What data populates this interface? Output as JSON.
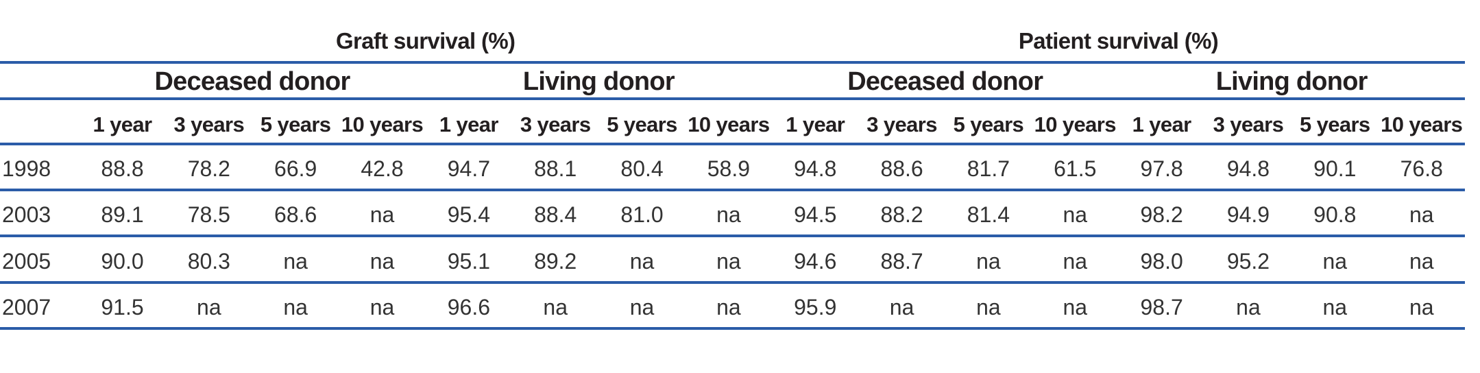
{
  "colors": {
    "rule": "#2b5ca8",
    "header_text": "#231f20",
    "data_text": "#333333"
  },
  "table": {
    "group_headers": {
      "graft": "Graft survival (%)",
      "patient": "Patient survival (%)"
    },
    "subgroup_headers": [
      "Deceased donor",
      "Living donor",
      "Deceased donor",
      "Living donor"
    ],
    "column_headers": [
      "1 year",
      "3 years",
      "5 years",
      "10 years",
      "1 year",
      "3 years",
      "5 years",
      "10 years",
      "1 year",
      "3 years",
      "5 years",
      "10 years",
      "1 year",
      "3 years",
      "5 years",
      "10 years"
    ],
    "rows": [
      {
        "year": "1998",
        "values": [
          "88.8",
          "78.2",
          "66.9",
          "42.8",
          "94.7",
          "88.1",
          "80.4",
          "58.9",
          "94.8",
          "88.6",
          "81.7",
          "61.5",
          "97.8",
          "94.8",
          "90.1",
          "76.8"
        ]
      },
      {
        "year": "2003",
        "values": [
          "89.1",
          "78.5",
          "68.6",
          "na",
          "95.4",
          "88.4",
          "81.0",
          "na",
          "94.5",
          "88.2",
          "81.4",
          "na",
          "98.2",
          "94.9",
          "90.8",
          "na"
        ]
      },
      {
        "year": "2005",
        "values": [
          "90.0",
          "80.3",
          "na",
          "na",
          "95.1",
          "89.2",
          "na",
          "na",
          "94.6",
          "88.7",
          "na",
          "na",
          "98.0",
          "95.2",
          "na",
          "na"
        ]
      },
      {
        "year": "2007",
        "values": [
          "91.5",
          "na",
          "na",
          "na",
          "96.6",
          "na",
          "na",
          "na",
          "95.9",
          "na",
          "na",
          "na",
          "98.7",
          "na",
          "na",
          "na"
        ]
      }
    ]
  }
}
